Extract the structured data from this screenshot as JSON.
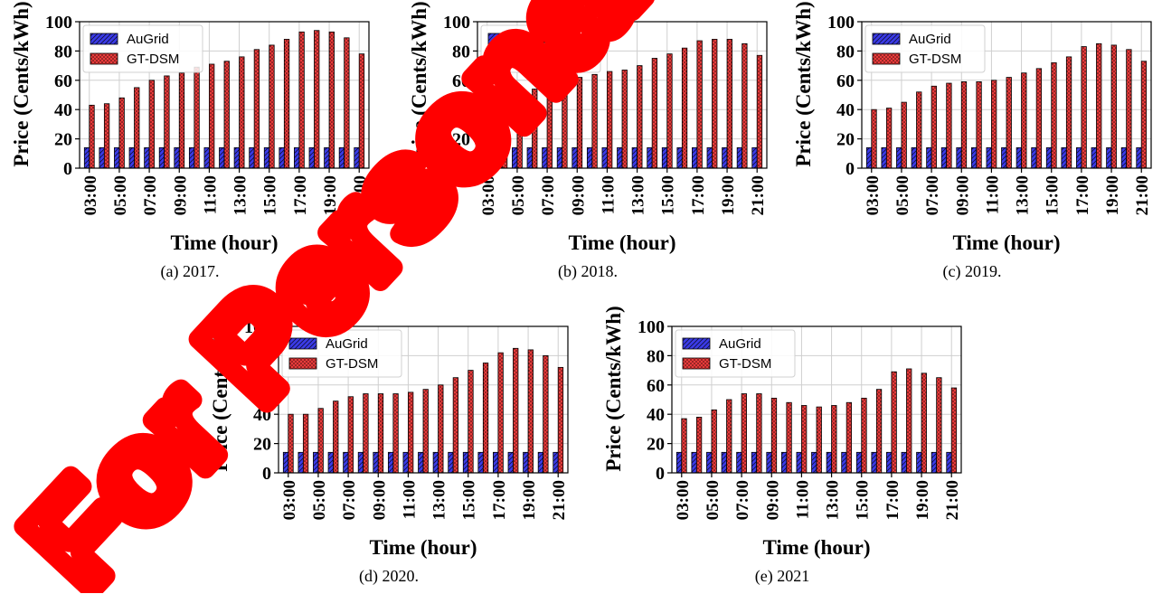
{
  "chart_data": [
    {
      "type": "bar",
      "caption": "(a)  2017.",
      "xlabel": "Time (hour)",
      "ylabel": "Price (Cents/kWh)",
      "ylim": [
        0,
        100
      ],
      "yticks": [
        0,
        20,
        40,
        60,
        80,
        100
      ],
      "x": [
        "03:00",
        "04:00",
        "05:00",
        "06:00",
        "07:00",
        "08:00",
        "09:00",
        "10:00",
        "11:00",
        "12:00",
        "13:00",
        "14:00",
        "15:00",
        "16:00",
        "17:00",
        "18:00",
        "19:00",
        "20:00",
        "21:00"
      ],
      "xtick_labels": [
        "03:00",
        "05:00",
        "07:00",
        "09:00",
        "11:00",
        "13:00",
        "15:00",
        "17:00",
        "19:00",
        "21:00"
      ],
      "grid": true,
      "legend": "top-left",
      "series": [
        {
          "name": "AuGrid",
          "color": "#3b3be8",
          "hatch": "diagonal",
          "values": [
            14,
            14,
            14,
            14,
            14,
            14,
            14,
            14,
            14,
            14,
            14,
            14,
            14,
            14,
            14,
            14,
            14,
            14,
            14
          ]
        },
        {
          "name": "GT-DSM",
          "color": "#e83b3b",
          "hatch": "dots",
          "values": [
            43,
            44,
            48,
            55,
            60,
            63,
            65,
            69,
            71,
            73,
            76,
            81,
            84,
            88,
            93,
            94,
            93,
            89,
            78
          ]
        }
      ]
    },
    {
      "type": "bar",
      "caption": "(b)  2018.",
      "xlabel": "Time (hour)",
      "ylabel": "Price (Cents/kWh)",
      "ylim": [
        0,
        100
      ],
      "yticks": [
        0,
        20,
        40,
        60,
        80,
        100
      ],
      "x": [
        "03:00",
        "04:00",
        "05:00",
        "06:00",
        "07:00",
        "08:00",
        "09:00",
        "10:00",
        "11:00",
        "12:00",
        "13:00",
        "14:00",
        "15:00",
        "16:00",
        "17:00",
        "18:00",
        "19:00",
        "20:00",
        "21:00"
      ],
      "xtick_labels": [
        "03:00",
        "05:00",
        "07:00",
        "09:00",
        "11:00",
        "13:00",
        "15:00",
        "17:00",
        "19:00",
        "21:00"
      ],
      "grid": true,
      "legend": "top-left",
      "series": [
        {
          "name": "AuGrid",
          "color": "#3b3be8",
          "hatch": "diagonal",
          "values": [
            14,
            14,
            14,
            14,
            14,
            14,
            14,
            14,
            14,
            14,
            14,
            14,
            14,
            14,
            14,
            14,
            14,
            14,
            14
          ]
        },
        {
          "name": "GT-DSM",
          "color": "#e83b3b",
          "hatch": "dots",
          "values": [
            41,
            42,
            47,
            54,
            59,
            63,
            62,
            64,
            66,
            67,
            70,
            75,
            78,
            82,
            87,
            88,
            88,
            85,
            77
          ]
        }
      ]
    },
    {
      "type": "bar",
      "caption": "(c)  2019.",
      "xlabel": "Time (hour)",
      "ylabel": "Price (Cents/kWh)",
      "ylim": [
        0,
        100
      ],
      "yticks": [
        0,
        20,
        40,
        60,
        80,
        100
      ],
      "x": [
        "03:00",
        "04:00",
        "05:00",
        "06:00",
        "07:00",
        "08:00",
        "09:00",
        "10:00",
        "11:00",
        "12:00",
        "13:00",
        "14:00",
        "15:00",
        "16:00",
        "17:00",
        "18:00",
        "19:00",
        "20:00",
        "21:00"
      ],
      "xtick_labels": [
        "03:00",
        "05:00",
        "07:00",
        "09:00",
        "11:00",
        "13:00",
        "15:00",
        "17:00",
        "19:00",
        "21:00"
      ],
      "grid": true,
      "legend": "top-left",
      "series": [
        {
          "name": "AuGrid",
          "color": "#3b3be8",
          "hatch": "diagonal",
          "values": [
            14,
            14,
            14,
            14,
            14,
            14,
            14,
            14,
            14,
            14,
            14,
            14,
            14,
            14,
            14,
            14,
            14,
            14,
            14
          ]
        },
        {
          "name": "GT-DSM",
          "color": "#e83b3b",
          "hatch": "dots",
          "values": [
            40,
            41,
            45,
            52,
            56,
            58,
            59,
            59,
            60,
            62,
            65,
            68,
            72,
            76,
            83,
            85,
            84,
            81,
            73
          ]
        }
      ]
    },
    {
      "type": "bar",
      "caption": "(d)  2020.",
      "xlabel": "Time (hour)",
      "ylabel": "Price (Cents/kWh)",
      "ylim": [
        0,
        100
      ],
      "yticks": [
        0,
        20,
        40,
        60,
        80,
        100
      ],
      "x": [
        "03:00",
        "04:00",
        "05:00",
        "06:00",
        "07:00",
        "08:00",
        "09:00",
        "10:00",
        "11:00",
        "12:00",
        "13:00",
        "14:00",
        "15:00",
        "16:00",
        "17:00",
        "18:00",
        "19:00",
        "20:00",
        "21:00"
      ],
      "xtick_labels": [
        "03:00",
        "05:00",
        "07:00",
        "09:00",
        "11:00",
        "13:00",
        "15:00",
        "17:00",
        "19:00",
        "21:00"
      ],
      "grid": true,
      "legend": "top-left",
      "series": [
        {
          "name": "AuGrid",
          "color": "#3b3be8",
          "hatch": "diagonal",
          "values": [
            14,
            14,
            14,
            14,
            14,
            14,
            14,
            14,
            14,
            14,
            14,
            14,
            14,
            14,
            14,
            14,
            14,
            14,
            14
          ]
        },
        {
          "name": "GT-DSM",
          "color": "#e83b3b",
          "hatch": "dots",
          "values": [
            40,
            40,
            44,
            49,
            52,
            54,
            54,
            54,
            55,
            57,
            60,
            65,
            70,
            75,
            82,
            85,
            84,
            80,
            72
          ]
        }
      ]
    },
    {
      "type": "bar",
      "caption": "(e)  2021",
      "xlabel": "Time (hour)",
      "ylabel": "Price (Cents/kWh)",
      "ylim": [
        0,
        100
      ],
      "yticks": [
        0,
        20,
        40,
        60,
        80,
        100
      ],
      "x": [
        "03:00",
        "04:00",
        "05:00",
        "06:00",
        "07:00",
        "08:00",
        "09:00",
        "10:00",
        "11:00",
        "12:00",
        "13:00",
        "14:00",
        "15:00",
        "16:00",
        "17:00",
        "18:00",
        "19:00",
        "20:00",
        "21:00"
      ],
      "xtick_labels": [
        "03:00",
        "05:00",
        "07:00",
        "09:00",
        "11:00",
        "13:00",
        "15:00",
        "17:00",
        "19:00",
        "21:00"
      ],
      "grid": true,
      "legend": "top-left",
      "series": [
        {
          "name": "AuGrid",
          "color": "#3b3be8",
          "hatch": "diagonal",
          "values": [
            14,
            14,
            14,
            14,
            14,
            14,
            14,
            14,
            14,
            14,
            14,
            14,
            14,
            14,
            14,
            14,
            14,
            14,
            14
          ]
        },
        {
          "name": "GT-DSM",
          "color": "#e83b3b",
          "hatch": "dots",
          "values": [
            37,
            38,
            43,
            50,
            54,
            54,
            51,
            48,
            46,
            45,
            46,
            48,
            51,
            57,
            69,
            71,
            68,
            65,
            58
          ]
        }
      ]
    }
  ],
  "watermark": {
    "text": "For Personal",
    "color": "#ff0000"
  }
}
